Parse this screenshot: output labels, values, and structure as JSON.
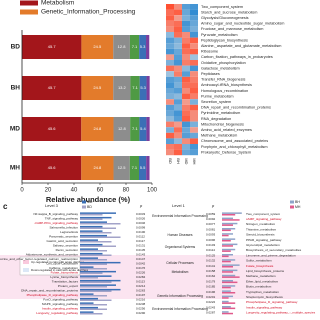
{
  "chart_data": {
    "type": "stacked-bar",
    "xlabel": "Relative abundance (%)",
    "categories": [
      "BD",
      "BH",
      "MD",
      "MH"
    ],
    "series": [
      {
        "name": "Metabolism",
        "color": "#a3161b",
        "values": [
          45.7,
          45.7,
          45.6,
          45.6
        ]
      },
      {
        "name": "Genetic_Information_Processing",
        "color": "#e37b2b",
        "values": [
          24.5,
          24.5,
          24.8,
          24.8
        ]
      },
      {
        "color": "#8d8d8d",
        "values": [
          12.8,
          13.2,
          12.8,
          12.5
        ]
      },
      {
        "color": "#4f9a44",
        "values": [
          7.1,
          7.1,
          7.1,
          7.1
        ]
      },
      {
        "color": "#3b6fb6",
        "values": [
          5.3,
          5.3,
          5.4,
          5.5
        ]
      },
      {
        "color": "#7b3f9e",
        "values": [
          2.5,
          2.4,
          2.5,
          2.6
        ]
      }
    ],
    "value_labels": [
      [
        "45.7",
        "24.5",
        "12.8",
        "7.1",
        "5.3"
      ],
      [
        "45.7",
        "24.5",
        "13.2",
        "7.1",
        "5.3"
      ],
      [
        "45.6",
        "24.8",
        "12.8",
        "7.1",
        "5.4"
      ],
      [
        "45.6",
        "24.8",
        "12.5",
        "7.1",
        "5.5"
      ]
    ],
    "xlim": [
      0,
      100
    ],
    "xticks": [
      0,
      20,
      40,
      60,
      80,
      100
    ]
  },
  "heatmap": {
    "columns": [
      "BD",
      "BH",
      "MD",
      "MH"
    ],
    "rows": [
      "Two_component_system",
      "Starch_and_sucrose_metabolism",
      "Glycolysis/Gluconeogenesis",
      "Amino_sugar_and_nucleotide_sugar_metabolism",
      "Fructose_and_mannose_metabolism",
      "Pyruvate_metabolism",
      "Peptidoglycan_biosynthesis",
      "Alanine,_aspartate_and_glutamate_metabolism",
      "Ribosome",
      "Carbon_fixation_pathways_in_prokaryotes",
      "Oxidative_phosphorylation",
      "Galactose_metabolism",
      "Peptidases",
      "Transfer_RNA_biogenesis",
      "Aminoacyl-tRNA_biosynthesis",
      "Homologous_recombination",
      "Purine_metabolism",
      "Secretion_system",
      "DNA_repair_and_recombination_proteins",
      "Pyrimidine_metabolism",
      "RNA_degradation",
      "Mitochondrial_biogenesis",
      "Amino_acid_related_enzymes",
      "Methane_metabolism",
      "Chromosome_and_associated_proteins",
      "Porphyrin_and_chlorophyll_metabolism",
      "Prokaryotic_Defense_System"
    ],
    "cells": [
      [
        1,
        0.6,
        -0.8,
        -0.9
      ],
      [
        0.8,
        0.9,
        -0.7,
        -1
      ],
      [
        0.9,
        0.5,
        -0.6,
        -0.8
      ],
      [
        0.7,
        0.8,
        -0.9,
        -0.7
      ],
      [
        0.6,
        0.9,
        -0.8,
        -0.6
      ],
      [
        -0.5,
        0.8,
        0.6,
        -0.9
      ],
      [
        -0.8,
        -0.6,
        0.7,
        0.9
      ],
      [
        -0.7,
        -0.5,
        0.9,
        0.6
      ],
      [
        -0.9,
        -0.7,
        0.8,
        0.9
      ],
      [
        0.5,
        -0.8,
        0.6,
        -0.4
      ],
      [
        -0.6,
        -0.9,
        0.7,
        0.8
      ],
      [
        0.8,
        0.6,
        -0.5,
        -0.9
      ],
      [
        -0.4,
        0.7,
        -0.8,
        0.6
      ],
      [
        -0.8,
        -0.7,
        0.9,
        0.7
      ],
      [
        -0.9,
        -0.6,
        0.8,
        0.8
      ],
      [
        -0.7,
        -0.8,
        0.6,
        0.9
      ],
      [
        -0.6,
        -0.5,
        0.9,
        0.7
      ],
      [
        0.6,
        -0.8,
        0.5,
        -0.6
      ],
      [
        -0.8,
        -0.6,
        0.7,
        0.9
      ],
      [
        -0.7,
        -0.9,
        0.8,
        0.6
      ],
      [
        -0.5,
        -0.8,
        0.9,
        0.6
      ],
      [
        0.7,
        0.5,
        -0.9,
        -0.6
      ],
      [
        -0.6,
        0.8,
        -0.7,
        0.5
      ],
      [
        0.9,
        0.6,
        -0.8,
        -0.7
      ],
      [
        -0.8,
        -0.5,
        0.6,
        0.9
      ],
      [
        0.7,
        0.8,
        -0.6,
        -0.9
      ],
      [
        0.6,
        0.9,
        -0.7,
        -0.8
      ]
    ]
  },
  "panel_c": {
    "label": "c",
    "level3": "Level 3",
    "level1": "Level 1",
    "p": "p",
    "legend": [
      "MD",
      "BD",
      "BH",
      "MH"
    ],
    "key": [
      "Up-regulated in cats with acute diarrhea",
      "Down-regulated in cats with acute diarrhea"
    ],
    "level1_names": [
      "Environmental Information Processing",
      "Human Diseases",
      "Organismal Systems",
      "Cellular Processes",
      "Metabolism",
      "Genetic Information Processing",
      "Environmental Information Processing"
    ],
    "left": [
      {
        "name": "NF-kappa_B_signaling_pathway",
        "p": "0.0033",
        "values": [
          0.8,
          0.5
        ]
      },
      {
        "name": "TNF_signaling_pathway",
        "p": "0.0026",
        "values": [
          0.7,
          0.5
        ]
      },
      {
        "name": "cGMP-PKG_signaling_pathway",
        "p": "0.0046",
        "values": [
          0.6,
          0.9
        ]
      },
      {
        "name": "Salmonella_infection",
        "p": "0.0099",
        "values": [
          0.5,
          0.8
        ]
      },
      {
        "name": "Legionellosis",
        "p": "0.0100",
        "values": [
          0.5,
          0.7
        ]
      },
      {
        "name": "Pancreatic_secretion",
        "p": "0.0112",
        "values": [
          0.6,
          0.9
        ]
      },
      {
        "name": "Gastric_acid_secretion",
        "p": "0.0117",
        "values": [
          0.4,
          0.7
        ]
      },
      {
        "name": "Salivary_secretion",
        "p": "0.0131",
        "values": [
          0.5,
          0.8
        ]
      },
      {
        "name": "Renin_secretion",
        "p": "0.0135",
        "values": [
          0.4,
          0.6
        ]
      },
      {
        "name": "Aldosterone_synthesis_and_secretion",
        "p": "0.0143",
        "values": [
          0.5,
          0.7
        ]
      },
      {
        "name": "Endocrine_and_other_factor-regulated_calcium_reabsorption",
        "p": "0.0147",
        "values": [
          0.4,
          0.6
        ]
      },
      {
        "name": "Cell_cycle-Caulobacter",
        "p": "0.0042",
        "values": [
          0.9,
          0.6
        ]
      },
      {
        "name": "Caffeine_metabolism",
        "p": "0.0176",
        "values": [
          0.3,
          0.6
        ]
      },
      {
        "name": "Folate_biosynthesis",
        "p": "0.0226",
        "values": [
          0.8,
          0.5
        ]
      },
      {
        "name": "Lysine_biosynthesis",
        "p": "0.0284",
        "values": [
          0.7,
          0.4
        ]
      },
      {
        "name": "Translation_factors",
        "p": "0.0113",
        "values": [
          0.9,
          0.7
        ]
      },
      {
        "name": "Protein_export",
        "p": "0.0214",
        "values": [
          0.8,
          0.6
        ]
      },
      {
        "name": "DNA_repair_and_recombination_proteins",
        "p": "0.0263",
        "values": [
          0.9,
          0.7
        ]
      },
      {
        "name": "Phospholipase_D_signaling_pathway",
        "p": "0.0197",
        "values": [
          0.3,
          0.6
        ]
      },
      {
        "name": "FoxO_signaling_pathway",
        "p": "0.0216",
        "values": [
          0.4,
          0.7
        ]
      },
      {
        "name": "MAPK_signaling_pathway",
        "p": "0.0238",
        "values": [
          0.3,
          0.6
        ]
      },
      {
        "name": "Insulin_signaling_pathway",
        "p": "0.0256",
        "values": [
          0.4,
          0.6
        ]
      },
      {
        "name": "Longevity_regulating_pathway",
        "p": "0.0290",
        "values": [
          0.3,
          0.5
        ]
      }
    ],
    "right": [
      {
        "name": "Two_component_system",
        "p": "0.0059",
        "values": [
          0.9,
          0.6
        ]
      },
      {
        "name": "cAMP_signaling_pathway",
        "p": "0.0092",
        "values": [
          0.5,
          0.8
        ]
      },
      {
        "name": "Nitrogen_metabolism",
        "p": "0.0077",
        "values": [
          0.7,
          0.5
        ]
      },
      {
        "name": "Thiamine_metabolism",
        "p": "0.0081",
        "values": [
          0.6,
          0.4
        ]
      },
      {
        "name": "Steroid_biosynthesis",
        "p": "0.0093",
        "values": [
          0.5,
          0.3
        ]
      },
      {
        "name": "PPAR_signaling_pathway",
        "p": "0.0096",
        "values": [
          0.6,
          0.4
        ]
      },
      {
        "name": "Glycerolipid_metabolism",
        "p": "0.0103",
        "values": [
          0.7,
          0.5
        ]
      },
      {
        "name": "Biosynthesis_of_secondary_metabolites",
        "p": "0.0114",
        "values": [
          0.6,
          0.4
        ]
      },
      {
        "name": "Limonene_and_pinene_degradation",
        "p": "0.0125",
        "values": [
          0.5,
          0.3
        ]
      },
      {
        "name": "Sulfur_metabolism",
        "p": "0.0132",
        "values": [
          0.6,
          0.4
        ]
      },
      {
        "name": "Folate_biosynthesis",
        "p": "0.0141",
        "values": [
          0.8,
          0.5
        ]
      },
      {
        "name": "Lipid_biosynthesis_proteins",
        "p": "0.0158",
        "values": [
          0.7,
          0.5
        ]
      },
      {
        "name": "Methane_metabolism",
        "p": "0.0162",
        "values": [
          0.6,
          0.8
        ]
      },
      {
        "name": "Ether_lipid_metabolism",
        "p": "0.0179",
        "values": [
          0.5,
          0.7
        ]
      },
      {
        "name": "Biotin_metabolism",
        "p": "0.0185",
        "values": [
          0.6,
          0.4
        ]
      },
      {
        "name": "Tryptophan_metabolism",
        "p": "0.0196",
        "values": [
          0.4,
          0.6
        ]
      },
      {
        "name": "Streptomycin_biosynthesis",
        "p": "0.0201",
        "values": [
          0.5,
          0.3
        ]
      },
      {
        "name": "Phospholipase_D_signaling_pathway",
        "p": "0.0222",
        "values": [
          0.3,
          0.6
        ]
      },
      {
        "name": "Insulin_signaling_pathway",
        "p": "0.0243",
        "values": [
          0.4,
          0.6
        ]
      },
      {
        "name": "Longevity_regulating_pathway_-_multiple_species",
        "p": "0.0287",
        "values": [
          0.3,
          0.5
        ]
      }
    ]
  }
}
